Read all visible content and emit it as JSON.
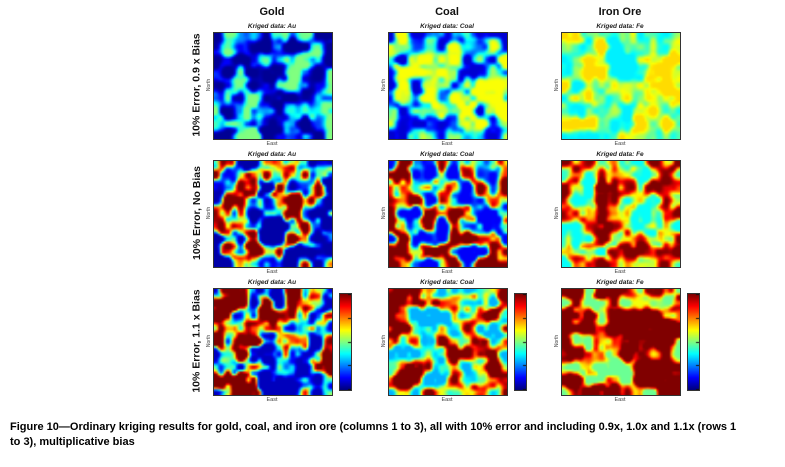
{
  "figure": {
    "caption": "Figure 10—Ordinary kriging results for gold, coal, and iron ore (columns 1 to 3), all with 10% error and including 0.9x, 1.0x and 1.1x (rows 1 to 3), multiplicative bias"
  },
  "columns": [
    {
      "header": "Gold",
      "subtitle": "Kriged data: Au"
    },
    {
      "header": "Coal",
      "subtitle": "Kriged data: Coal"
    },
    {
      "header": "Iron Ore",
      "subtitle": "Kriged data: Fe"
    }
  ],
  "rows": [
    {
      "label": "10% Error, 0.9 x Bias",
      "colorbar": false
    },
    {
      "label": "10% Error, No Bias",
      "colorbar": false
    },
    {
      "label": "10% Error, 1.1 x Bias",
      "colorbar": true
    }
  ],
  "chart_data": {
    "type": "heatmap",
    "layout": "3x3 grid of kriged spatial maps; columns = metal (Au, Coal, Fe), rows = multiplicative bias (0.9x, 1.0x, 1.1x) at 10% error",
    "colormap": "jet",
    "colormap_low_color": "#00008f",
    "colormap_high_color": "#bf0000",
    "value_semantics": "kriged estimate, blue = low grade, red = high grade; overall level rises from row 1 (0.9x bias) to row 3 (1.1x bias) and differs by metal baseline",
    "axis": {
      "x_label": "East",
      "y_label": "North"
    },
    "cells": [
      {
        "row": 0,
        "col": 0,
        "seed": 101,
        "tmin": 0.02,
        "tmax": 0.5,
        "gamma": 1.3
      },
      {
        "row": 0,
        "col": 1,
        "seed": 202,
        "tmin": 0.08,
        "tmax": 0.62,
        "gamma": 1.0
      },
      {
        "row": 0,
        "col": 2,
        "seed": 303,
        "tmin": 0.36,
        "tmax": 0.66,
        "gamma": 1.0
      },
      {
        "row": 1,
        "col": 0,
        "seed": 404,
        "tmin": 0.04,
        "tmax": 1.0,
        "gamma": 1.5
      },
      {
        "row": 1,
        "col": 1,
        "seed": 505,
        "tmin": 0.12,
        "tmax": 1.02,
        "gamma": 1.15
      },
      {
        "row": 1,
        "col": 2,
        "seed": 606,
        "tmin": 0.38,
        "tmax": 1.02,
        "gamma": 1.0
      },
      {
        "row": 2,
        "col": 0,
        "seed": 707,
        "tmin": 0.06,
        "tmax": 1.12,
        "gamma": 1.0
      },
      {
        "row": 2,
        "col": 1,
        "seed": 808,
        "tmin": 0.3,
        "tmax": 1.15,
        "gamma": 0.85
      },
      {
        "row": 2,
        "col": 2,
        "seed": 909,
        "tmin": 0.48,
        "tmax": 1.2,
        "gamma": 0.75
      }
    ]
  }
}
